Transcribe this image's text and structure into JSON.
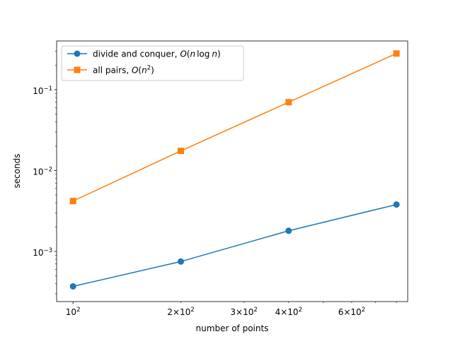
{
  "chart_data": {
    "type": "line",
    "xlabel": "number of points",
    "ylabel": "seconds",
    "xscale": "log",
    "yscale": "log",
    "xlim": [
      90,
      860
    ],
    "ylim": [
      0.00024,
      0.4
    ],
    "grid": false,
    "legend_position": "top-left",
    "x_major_ticks": [
      {
        "value": 100,
        "base": "10",
        "exp": "2"
      }
    ],
    "x_minor_tick_values": [
      200,
      300,
      400,
      500,
      600,
      700,
      800
    ],
    "x_minor_labels": [
      {
        "value": 200,
        "mant": "2",
        "base": "10",
        "exp": "2"
      },
      {
        "value": 300,
        "mant": "3",
        "base": "10",
        "exp": "2"
      },
      {
        "value": 400,
        "mant": "4",
        "base": "10",
        "exp": "2"
      },
      {
        "value": 600,
        "mant": "6",
        "base": "10",
        "exp": "2"
      }
    ],
    "y_major_ticks": [
      {
        "value": 0.001,
        "base": "10",
        "exp": "−3"
      },
      {
        "value": 0.01,
        "base": "10",
        "exp": "−2"
      },
      {
        "value": 0.1,
        "base": "10",
        "exp": "−1"
      }
    ],
    "x": [
      100,
      200,
      400,
      800
    ],
    "series": [
      {
        "name": "divide and conquer, O(n log n)",
        "legend_parts": [
          "divide and conquer, ",
          "O",
          "(",
          "n",
          "log",
          "n",
          ")"
        ],
        "values": [
          0.00037,
          0.00075,
          0.0018,
          0.0038
        ],
        "color": "#1f77b4",
        "marker": "circle"
      },
      {
        "name": "all pairs, O(n²)",
        "legend_parts": [
          "all pairs, ",
          "O",
          "(",
          "n",
          "2",
          ")"
        ],
        "values": [
          0.0042,
          0.0175,
          0.07,
          0.28
        ],
        "color": "#ff7f0e",
        "marker": "square"
      }
    ]
  }
}
